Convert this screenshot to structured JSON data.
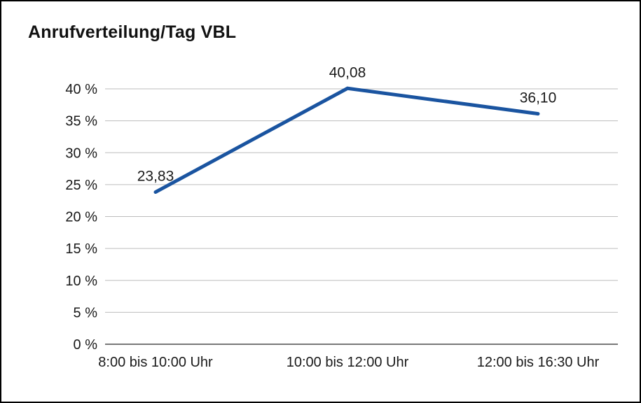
{
  "chart_data": {
    "type": "line",
    "title": "Anrufverteilung/Tag VBL",
    "categories": [
      "8:00 bis 10:00 Uhr",
      "10:00 bis 12:00 Uhr",
      "12:00 bis 16:30 Uhr"
    ],
    "values": [
      23.83,
      40.08,
      36.1
    ],
    "point_labels": [
      "23,83",
      "40,08",
      "36,10"
    ],
    "xlabel": "",
    "ylabel": "",
    "ylim": [
      0,
      40
    ],
    "y_step": 5,
    "y_tick_suffix": " %",
    "y_ticks": [
      "0 %",
      "5 %",
      "10 %",
      "15 %",
      "20 %",
      "25 %",
      "30 %",
      "35 %",
      "40 %"
    ],
    "grid": true,
    "legend_position": "none",
    "colors": {
      "line": "#1a54a0",
      "grid": "#bdbdbd",
      "axis": "#4d4d4d",
      "border": "#000000",
      "text": "#1a1a1a"
    }
  }
}
